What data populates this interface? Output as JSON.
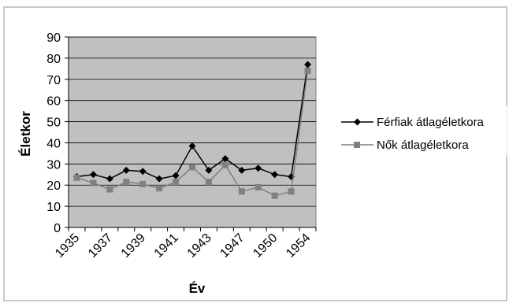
{
  "chart_data": {
    "type": "line",
    "title": "",
    "xlabel": "Év",
    "ylabel": "Életkor",
    "ylim": [
      0,
      90
    ],
    "y_ticks": [
      "0",
      "10",
      "20",
      "30",
      "40",
      "50",
      "60",
      "70",
      "80",
      "90"
    ],
    "x_tick_labels": [
      "1935",
      "1937",
      "1939",
      "1941",
      "1943",
      "1947",
      "1950",
      "1954"
    ],
    "grid": true,
    "legend_position": "right",
    "colors": {
      "plot_background": "#c0c0c0",
      "gridline": "#000000",
      "men_series": "#000000",
      "women_series": "#808080"
    },
    "series": [
      {
        "name": "Férfiak átlagéletkora",
        "marker": "diamond",
        "color": "#000000",
        "values": [
          24,
          25,
          23,
          27,
          26.5,
          23,
          24.5,
          38.5,
          27,
          32.5,
          27,
          28,
          25,
          24,
          77
        ]
      },
      {
        "name": "Nők átlagéletkora",
        "marker": "square",
        "color": "#808080",
        "values": [
          23.5,
          21,
          18,
          21.5,
          20.5,
          18.5,
          21.5,
          28.5,
          21.5,
          29.5,
          17,
          19,
          15,
          17,
          74
        ]
      }
    ]
  }
}
